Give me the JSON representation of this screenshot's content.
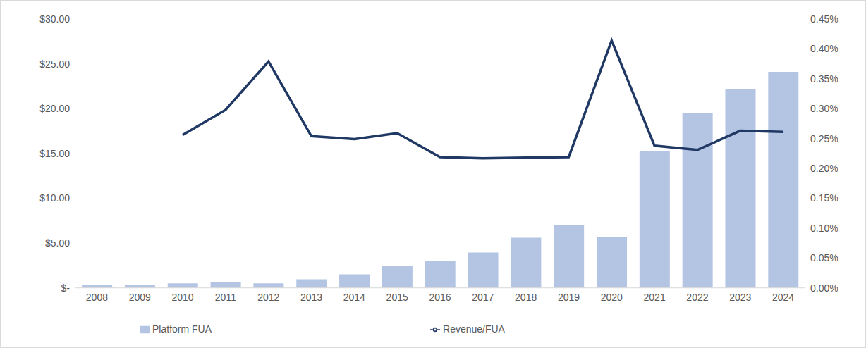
{
  "chart_data": {
    "type": "bar",
    "categories": [
      "2008",
      "2009",
      "2010",
      "2011",
      "2012",
      "2013",
      "2014",
      "2015",
      "2016",
      "2017",
      "2018",
      "2019",
      "2020",
      "2021",
      "2022",
      "2023",
      "2024"
    ],
    "series": [
      {
        "name": "Platform FUA",
        "type": "bar",
        "color": "#b4c5e4",
        "values": [
          0.3,
          0.3,
          0.5,
          0.6,
          0.5,
          0.95,
          1.5,
          2.45,
          3.05,
          3.95,
          5.6,
          7.0,
          5.7,
          15.3,
          19.5,
          22.2,
          24.1
        ]
      },
      {
        "name": "Revenue/FUA",
        "type": "line",
        "color": "#203864",
        "axis": "y2",
        "values": [
          null,
          null,
          0.256,
          0.298,
          0.379,
          0.254,
          0.249,
          0.259,
          0.219,
          0.217,
          0.218,
          0.219,
          0.414,
          0.238,
          0.231,
          0.263,
          0.261
        ]
      }
    ],
    "ylim": [
      0,
      30
    ],
    "yticks": [
      {
        "value": 0,
        "label": "$-"
      },
      {
        "value": 5,
        "label": "$5.00"
      },
      {
        "value": 10,
        "label": "$10.00"
      },
      {
        "value": 15,
        "label": "$15.00"
      },
      {
        "value": 20,
        "label": "$20.00"
      },
      {
        "value": 25,
        "label": "$25.00"
      },
      {
        "value": 30,
        "label": "$30.00"
      }
    ],
    "y2lim": [
      0,
      0.45
    ],
    "y2ticks": [
      {
        "value": 0,
        "label": "0.00%"
      },
      {
        "value": 0.05,
        "label": "0.05%"
      },
      {
        "value": 0.1,
        "label": "0.10%"
      },
      {
        "value": 0.15,
        "label": "0.15%"
      },
      {
        "value": 0.2,
        "label": "0.20%"
      },
      {
        "value": 0.25,
        "label": "0.25%"
      },
      {
        "value": 0.3,
        "label": "0.30%"
      },
      {
        "value": 0.35,
        "label": "0.35%"
      },
      {
        "value": 0.4,
        "label": "0.40%"
      },
      {
        "value": 0.45,
        "label": "0.45%"
      }
    ],
    "grid": false,
    "legend": "bottom"
  }
}
